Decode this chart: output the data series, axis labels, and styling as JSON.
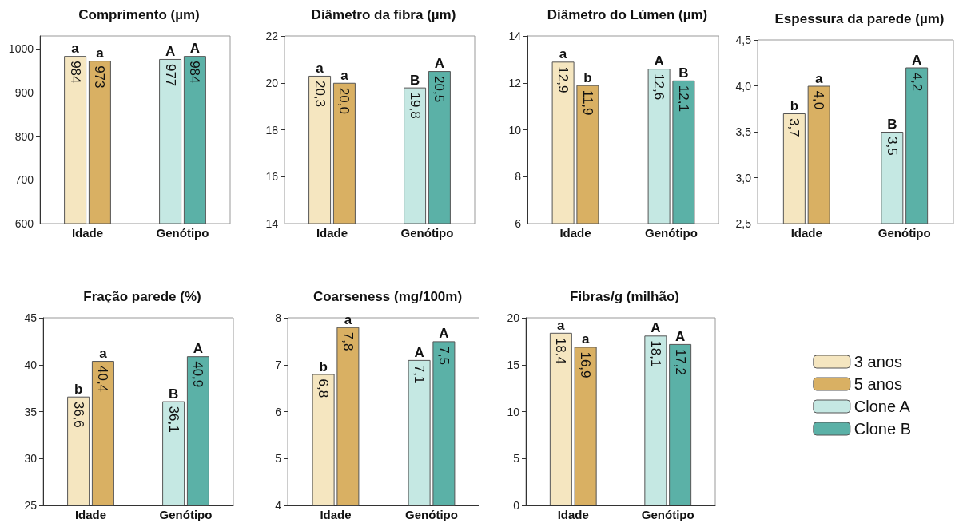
{
  "chart_data": [
    {
      "type": "bar",
      "title": "Comprimento (µm)",
      "categories": [
        "Idade",
        "Genótipo"
      ],
      "series": [
        {
          "color": "#f5e6c0",
          "values": [
            984,
            null
          ],
          "value_labels": [
            "984",
            null
          ]
        },
        {
          "color": "#d9b063",
          "values": [
            973,
            null
          ],
          "value_labels": [
            "973",
            null
          ]
        },
        {
          "color": "#c5e8e3",
          "values": [
            null,
            977
          ],
          "value_labels": [
            null,
            "977"
          ]
        },
        {
          "color": "#5bb1a7",
          "values": [
            null,
            984
          ],
          "value_labels": [
            null,
            "984"
          ]
        }
      ],
      "ylim": [
        600,
        1030
      ],
      "yticks": [
        600,
        700,
        800,
        900,
        1000
      ],
      "annotations": [
        {
          "text": "a",
          "x": "Idade",
          "y": 984
        },
        {
          "text": "a",
          "x": "Idade",
          "y": 973
        },
        {
          "text": "A",
          "x": "Genótipo",
          "y": 977
        },
        {
          "text": "A",
          "x": "Genótipo",
          "y": 984
        }
      ]
    },
    {
      "type": "bar",
      "title": "Diâmetro da fibra (µm)",
      "categories": [
        "Idade",
        "Genótipo"
      ],
      "series": [
        {
          "color": "#f5e6c0",
          "values": [
            20.3,
            null
          ],
          "value_labels": [
            "20,3",
            null
          ]
        },
        {
          "color": "#d9b063",
          "values": [
            20.0,
            null
          ],
          "value_labels": [
            "20,0",
            null
          ]
        },
        {
          "color": "#c5e8e3",
          "values": [
            null,
            19.8
          ],
          "value_labels": [
            null,
            "19,8"
          ]
        },
        {
          "color": "#5bb1a7",
          "values": [
            null,
            20.5
          ],
          "value_labels": [
            null,
            "20,5"
          ]
        }
      ],
      "ylim": [
        14,
        22
      ],
      "yticks": [
        14,
        16,
        18,
        20,
        22
      ],
      "annotations": [
        {
          "text": "a",
          "x": "Idade",
          "y": 20.3
        },
        {
          "text": "a",
          "x": "Idade",
          "y": 20.0
        },
        {
          "text": "B",
          "x": "Genótipo",
          "y": 19.8
        },
        {
          "text": "A",
          "x": "Genótipo",
          "y": 20.5
        }
      ]
    },
    {
      "type": "bar",
      "title": "Diâmetro do Lúmen (µm)",
      "categories": [
        "Idade",
        "Genótipo"
      ],
      "series": [
        {
          "color": "#f5e6c0",
          "values": [
            12.9,
            null
          ],
          "value_labels": [
            "12,9",
            null
          ]
        },
        {
          "color": "#d9b063",
          "values": [
            11.9,
            null
          ],
          "value_labels": [
            "11,9",
            null
          ]
        },
        {
          "color": "#c5e8e3",
          "values": [
            null,
            12.6
          ],
          "value_labels": [
            null,
            "12,6"
          ]
        },
        {
          "color": "#5bb1a7",
          "values": [
            null,
            12.1
          ],
          "value_labels": [
            null,
            "12,1"
          ]
        }
      ],
      "ylim": [
        6,
        14
      ],
      "yticks": [
        6,
        8,
        10,
        12,
        14
      ],
      "annotations": [
        {
          "text": "a",
          "x": "Idade",
          "y": 12.9
        },
        {
          "text": "b",
          "x": "Idade",
          "y": 11.9
        },
        {
          "text": "A",
          "x": "Genótipo",
          "y": 12.6
        },
        {
          "text": "B",
          "x": "Genótipo",
          "y": 12.1
        }
      ]
    },
    {
      "type": "bar",
      "title": "Espessura da parede (µm)",
      "categories": [
        "Idade",
        "Genótipo"
      ],
      "series": [
        {
          "color": "#f5e6c0",
          "values": [
            3.7,
            null
          ],
          "value_labels": [
            "3,7",
            null
          ]
        },
        {
          "color": "#d9b063",
          "values": [
            4.0,
            null
          ],
          "value_labels": [
            "4,0",
            null
          ]
        },
        {
          "color": "#c5e8e3",
          "values": [
            null,
            3.5
          ],
          "value_labels": [
            null,
            "3,5"
          ]
        },
        {
          "color": "#5bb1a7",
          "values": [
            null,
            4.2
          ],
          "value_labels": [
            null,
            "4,2"
          ]
        }
      ],
      "ylim": [
        2.5,
        4.5
      ],
      "yticks": [
        {
          "value": 2.5,
          "label": "2,5"
        },
        {
          "value": 3,
          "label": "3,0"
        },
        {
          "value": 3.5,
          "label": "3,5"
        },
        {
          "value": 4,
          "label": "4,0"
        },
        {
          "value": 4.5,
          "label": "4,5"
        }
      ],
      "annotations": [
        {
          "text": "b",
          "x": "Idade",
          "y": 3.7
        },
        {
          "text": "a",
          "x": "Idade",
          "y": 4.0
        },
        {
          "text": "B",
          "x": "Genótipo",
          "y": 3.5
        },
        {
          "text": "A",
          "x": "Genótipo",
          "y": 4.2
        }
      ]
    },
    {
      "type": "bar",
      "title": "Fração parede (%)",
      "categories": [
        "Idade",
        "Genótipo"
      ],
      "series": [
        {
          "color": "#f5e6c0",
          "values": [
            36.6,
            null
          ],
          "value_labels": [
            "36,6",
            null
          ]
        },
        {
          "color": "#d9b063",
          "values": [
            40.4,
            null
          ],
          "value_labels": [
            "40,4",
            null
          ]
        },
        {
          "color": "#c5e8e3",
          "values": [
            null,
            36.1
          ],
          "value_labels": [
            null,
            "36,1"
          ]
        },
        {
          "color": "#5bb1a7",
          "values": [
            null,
            40.9
          ],
          "value_labels": [
            null,
            "40,9"
          ]
        }
      ],
      "ylim": [
        25,
        45
      ],
      "yticks": [
        25,
        30,
        35,
        40,
        45
      ],
      "annotations": [
        {
          "text": "b",
          "x": "Idade",
          "y": 36.6
        },
        {
          "text": "a",
          "x": "Idade",
          "y": 40.4
        },
        {
          "text": "B",
          "x": "Genótipo",
          "y": 36.1
        },
        {
          "text": "A",
          "x": "Genótipo",
          "y": 40.9
        }
      ]
    },
    {
      "type": "bar",
      "title": "Coarseness (mg/100m)",
      "categories": [
        "Idade",
        "Genótipo"
      ],
      "series": [
        {
          "color": "#f5e6c0",
          "values": [
            6.8,
            null
          ],
          "value_labels": [
            "6,8",
            null
          ]
        },
        {
          "color": "#d9b063",
          "values": [
            7.8,
            null
          ],
          "value_labels": [
            "7,8",
            null
          ]
        },
        {
          "color": "#c5e8e3",
          "values": [
            null,
            7.1
          ],
          "value_labels": [
            null,
            "7,1"
          ]
        },
        {
          "color": "#5bb1a7",
          "values": [
            null,
            7.5
          ],
          "value_labels": [
            null,
            "7,5"
          ]
        }
      ],
      "ylim": [
        4,
        8
      ],
      "yticks": [
        4,
        5,
        6,
        7,
        8
      ],
      "annotations": [
        {
          "text": "b",
          "x": "Idade",
          "y": 6.8
        },
        {
          "text": "a",
          "x": "Idade",
          "y": 7.8
        },
        {
          "text": "A",
          "x": "Genótipo",
          "y": 7.1
        },
        {
          "text": "A",
          "x": "Genótipo",
          "y": 7.5
        }
      ]
    },
    {
      "type": "bar",
      "title": "Fibras/g (milhão)",
      "categories": [
        "Idade",
        "Genótipo"
      ],
      "series": [
        {
          "name": "3 anos",
          "color": "#f5e6c0",
          "values": [
            18.4,
            null
          ],
          "value_labels": [
            "18,4",
            null
          ]
        },
        {
          "name": "5 anos",
          "color": "#d9b063",
          "values": [
            16.9,
            null
          ],
          "value_labels": [
            "16,9",
            null
          ]
        },
        {
          "name": "Clone A",
          "color": "#c5e8e3",
          "values": [
            null,
            18.1
          ],
          "value_labels": [
            null,
            "18,1"
          ]
        },
        {
          "name": "Clone B",
          "color": "#5bb1a7",
          "values": [
            null,
            17.2
          ],
          "value_labels": [
            null,
            "17,2"
          ]
        }
      ],
      "ylim": [
        0,
        20
      ],
      "yticks": [
        0,
        5,
        10,
        15,
        20
      ],
      "legend": "right",
      "annotations": [
        {
          "text": "a",
          "x": "Idade",
          "y": 18.4
        },
        {
          "text": "a",
          "x": "Idade",
          "y": 16.9
        },
        {
          "text": "A",
          "x": "Genótipo",
          "y": 18.1
        },
        {
          "text": "A",
          "x": "Genótipo",
          "y": 17.2
        }
      ]
    }
  ]
}
